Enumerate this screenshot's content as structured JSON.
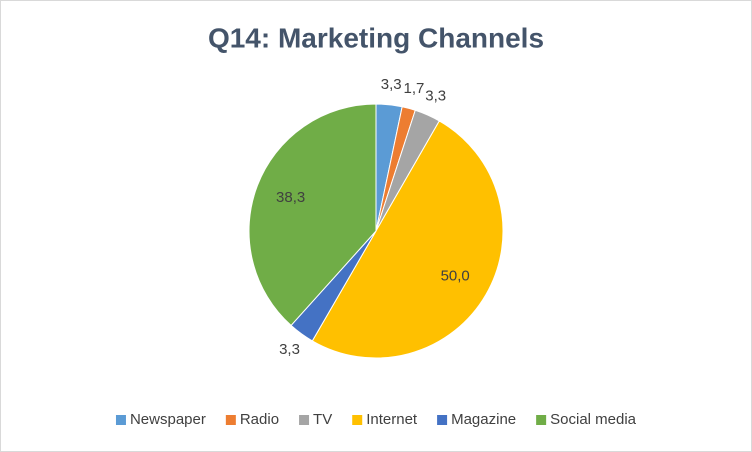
{
  "chart_data": {
    "type": "pie",
    "title": "Q14: Marketing Channels",
    "categories": [
      "Newspaper",
      "Radio",
      "TV",
      "Internet",
      "Magazine",
      "Social media"
    ],
    "values": [
      3.3,
      1.7,
      3.3,
      50.0,
      3.3,
      38.3
    ],
    "value_labels": [
      "3,3",
      "1,7",
      "3,3",
      "50,0",
      "3,3",
      "38,3"
    ],
    "colors": [
      "#5b9bd5",
      "#ed7d31",
      "#a5a5a5",
      "#ffc000",
      "#4472c4",
      "#70ad47"
    ],
    "legend": "bottom"
  }
}
